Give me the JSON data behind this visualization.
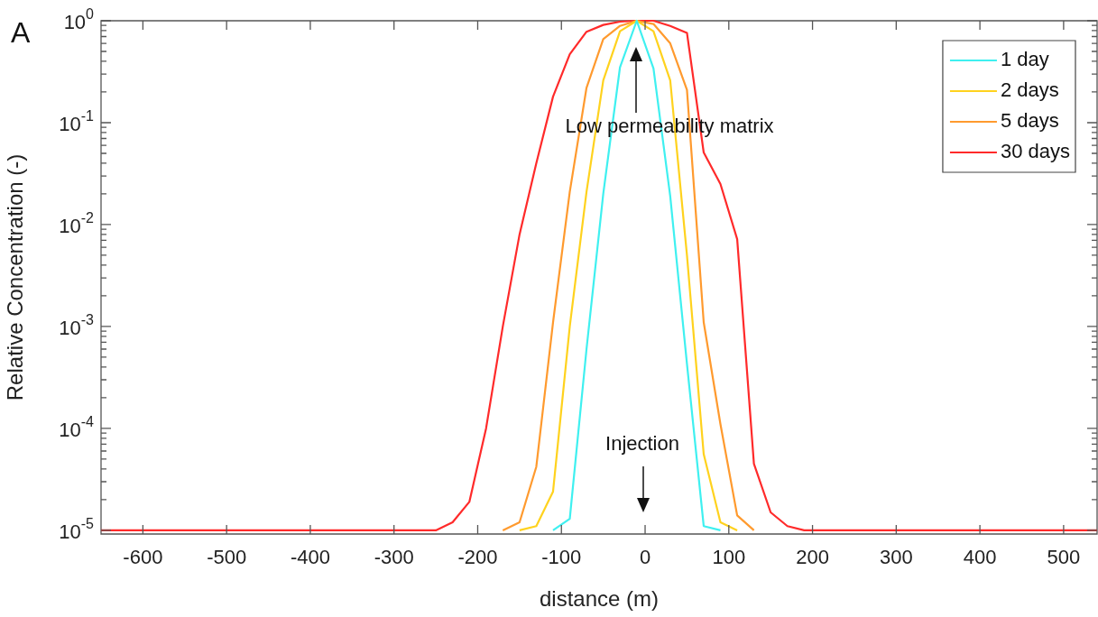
{
  "chart_data": {
    "type": "line",
    "xlabel": "distance (m)",
    "ylabel": "Relative Concentration (-)",
    "series": [
      {
        "name": "1 day",
        "color": "#3ff0f0",
        "x": [
          -110,
          -90,
          -70,
          -50,
          -30,
          -10,
          10,
          30,
          50,
          70,
          90
        ],
        "values": [
          1e-05,
          1.3e-05,
          0.0006,
          0.02,
          0.35,
          1,
          0.34,
          0.019,
          0.00043,
          1.1e-05,
          1e-05
        ]
      },
      {
        "name": "2 days",
        "color": "#ffd21e",
        "x": [
          -150,
          -130,
          -110,
          -90,
          -70,
          -50,
          -30,
          -10,
          10,
          30,
          50,
          70,
          90,
          110
        ],
        "values": [
          1e-05,
          1.1e-05,
          2.4e-05,
          0.001,
          0.021,
          0.26,
          0.79,
          1,
          0.79,
          0.26,
          0.005,
          5.6e-05,
          1.2e-05,
          1e-05
        ]
      },
      {
        "name": "5 days",
        "color": "#ff9a2e",
        "x": [
          -170,
          -150,
          -130,
          -110,
          -90,
          -70,
          -50,
          -30,
          -10,
          10,
          30,
          50,
          70,
          90,
          110,
          130
        ],
        "values": [
          1e-05,
          1.2e-05,
          4.2e-05,
          0.0011,
          0.021,
          0.22,
          0.66,
          0.89,
          1,
          0.93,
          0.6,
          0.21,
          0.0011,
          0.00011,
          1.4e-05,
          1e-05
        ]
      },
      {
        "name": "30 days",
        "color": "#ff2a2a",
        "x": [
          -650,
          -250,
          -230,
          -210,
          -190,
          -170,
          -150,
          -130,
          -110,
          -90,
          -70,
          -50,
          -30,
          -10,
          10,
          30,
          50,
          70,
          90,
          110,
          130,
          150,
          170,
          190,
          540
        ],
        "values": [
          1e-05,
          1e-05,
          1.2e-05,
          1.9e-05,
          0.0001,
          0.001,
          0.008,
          0.04,
          0.18,
          0.47,
          0.78,
          0.91,
          0.98,
          1,
          1,
          0.89,
          0.76,
          0.051,
          0.025,
          0.0072,
          4.5e-05,
          1.5e-05,
          1.1e-05,
          1e-05,
          1e-05
        ]
      }
    ],
    "xlim": [
      -650,
      540
    ],
    "xticks": [
      -600,
      -500,
      -400,
      -300,
      -200,
      -100,
      0,
      100,
      200,
      300,
      400,
      500
    ],
    "ylim": [
      9.2e-06,
      1
    ],
    "log": "y",
    "yticks": [
      {
        "value": 1e-05,
        "label": "10$^{-5}$"
      },
      {
        "value": 2e-05,
        "label": null
      },
      {
        "value": 3e-05,
        "label": null
      },
      {
        "value": 4e-05,
        "label": null
      },
      {
        "value": 5e-05,
        "label": null
      },
      {
        "value": 6e-05,
        "label": null
      },
      {
        "value": 7e-05,
        "label": null
      },
      {
        "value": 8e-05,
        "label": null
      },
      {
        "value": 9e-05,
        "label": null
      },
      {
        "value": 0.0001,
        "label": "10$^{-4}$"
      },
      {
        "value": 0.0002,
        "label": null
      },
      {
        "value": 0.0003,
        "label": null
      },
      {
        "value": 0.0004,
        "label": null
      },
      {
        "value": 0.0005,
        "label": null
      },
      {
        "value": 0.0006,
        "label": null
      },
      {
        "value": 0.0007,
        "label": null
      },
      {
        "value": 0.0008,
        "label": null
      },
      {
        "value": 0.0009,
        "label": null
      },
      {
        "value": 0.001,
        "label": "10$^{-3}$"
      },
      {
        "value": 0.002,
        "label": null
      },
      {
        "value": 0.003,
        "label": null
      },
      {
        "value": 0.004,
        "label": null
      },
      {
        "value": 0.005,
        "label": null
      },
      {
        "value": 0.006,
        "label": null
      },
      {
        "value": 0.007,
        "label": null
      },
      {
        "value": 0.008,
        "label": null
      },
      {
        "value": 0.009,
        "label": null
      },
      {
        "value": 0.01,
        "label": "10$^{-2}$"
      },
      {
        "value": 0.02,
        "label": null
      },
      {
        "value": 0.03,
        "label": null
      },
      {
        "value": 0.04,
        "label": null
      },
      {
        "value": 0.05,
        "label": null
      },
      {
        "value": 0.06,
        "label": null
      },
      {
        "value": 0.07,
        "label": null
      },
      {
        "value": 0.08,
        "label": null
      },
      {
        "value": 0.09,
        "label": null
      },
      {
        "value": 0.1,
        "label": "10$^{-1}$"
      },
      {
        "value": 0.2,
        "label": null
      },
      {
        "value": 0.3,
        "label": null
      },
      {
        "value": 0.4,
        "label": null
      },
      {
        "value": 0.5,
        "label": null
      },
      {
        "value": 0.6,
        "label": null
      },
      {
        "value": 0.7,
        "label": null
      },
      {
        "value": 0.8,
        "label": null
      },
      {
        "value": 0.9,
        "label": null
      },
      {
        "value": 1,
        "label": "10$^{0}$"
      }
    ],
    "grid": false,
    "legend": "top right",
    "marker": "none",
    "line_style": "solid",
    "annotations": [
      "A",
      "Low permeability matrix",
      "Injection"
    ]
  }
}
